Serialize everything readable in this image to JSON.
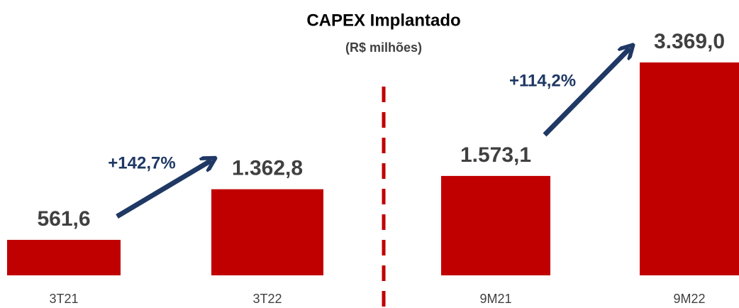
{
  "chart_data": {
    "type": "bar",
    "title": "CAPEX Implantado",
    "subtitle": "(R$ milhões)",
    "categories": [
      "3T21",
      "3T22",
      "9M21",
      "9M22"
    ],
    "values": [
      561.6,
      1362.8,
      1573.1,
      3369.0
    ],
    "value_labels": [
      "561,6",
      "1.362,8",
      "1.573,1",
      "3.369,0"
    ],
    "color": "#c00000",
    "annotations": [
      "+142,7%",
      "+114,2%"
    ]
  }
}
